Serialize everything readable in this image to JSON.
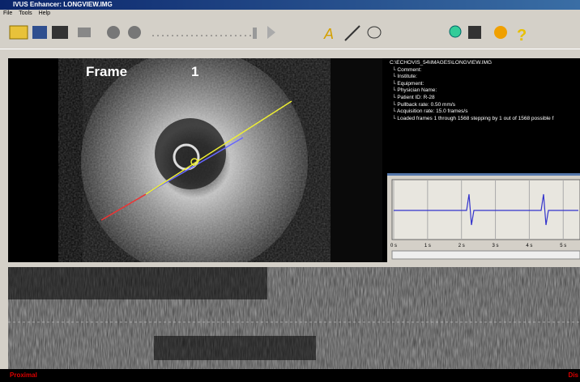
{
  "window": {
    "title": "IVUS Enhancer: LONGVIEW.IMG",
    "menu": [
      "File",
      "Tools",
      "Help"
    ]
  },
  "image": {
    "frame_label": "Frame",
    "frame_number": "1"
  },
  "info": {
    "path": "C:\\ECHOVIS_54\\IMAGES\\LONGVIEW.IMG",
    "lines": [
      "Comment:",
      "Institute:",
      "Equipment:",
      "Physician Name:",
      "Patient ID: R-28",
      "Pullback rate: 0.50 mm/s",
      "Acquisition rate: 15.0 frames/s",
      "Loaded frames 1 through 1568 stepping by 1 out of 1568 possible f"
    ]
  },
  "ecg": {
    "time_labels": [
      "0 s",
      "1 s",
      "2 s",
      "3 s",
      "4 s",
      "5 s"
    ]
  },
  "longview": {
    "left_label": "Proximal",
    "right_label": "Dis"
  }
}
